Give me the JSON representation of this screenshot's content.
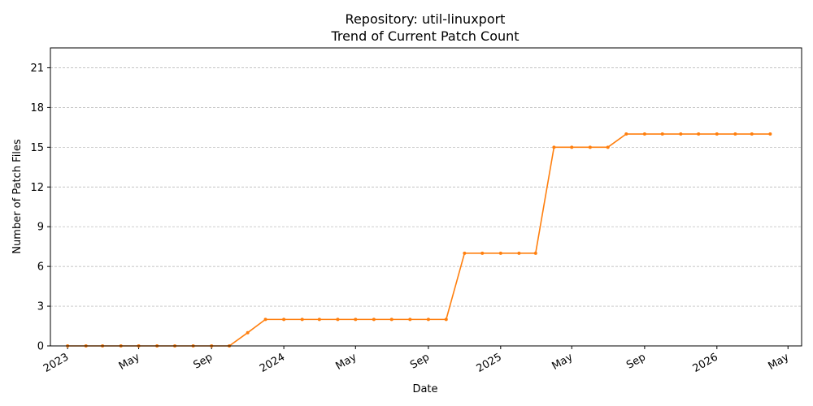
{
  "chart_data": {
    "type": "line",
    "title": "Repository: util-linuxport",
    "subtitle": "Trend of Current Patch Count",
    "xlabel": "Date",
    "ylabel": "Number of Patch Files",
    "ylim": [
      0,
      22.5
    ],
    "yticks": [
      0,
      3,
      6,
      9,
      12,
      15,
      18,
      21
    ],
    "grid": "horizontal dashed",
    "xlim": [
      "2022-12-03",
      "2026-05-24"
    ],
    "xticks": [
      {
        "date": "2023-01-01",
        "label": "2023"
      },
      {
        "date": "2023-05-01",
        "label": "May"
      },
      {
        "date": "2023-09-01",
        "label": "Sep"
      },
      {
        "date": "2024-01-01",
        "label": "2024"
      },
      {
        "date": "2024-05-01",
        "label": "May"
      },
      {
        "date": "2024-09-01",
        "label": "Sep"
      },
      {
        "date": "2025-01-01",
        "label": "2025"
      },
      {
        "date": "2025-05-01",
        "label": "May"
      },
      {
        "date": "2025-09-01",
        "label": "Sep"
      },
      {
        "date": "2026-01-01",
        "label": "2026"
      },
      {
        "date": "2026-05-01",
        "label": "May"
      }
    ],
    "series": [
      {
        "color": "#ff7f0e",
        "x": [
          "2023-01-01",
          "2023-02-01",
          "2023-03-01",
          "2023-04-01",
          "2023-05-01",
          "2023-06-01",
          "2023-07-01",
          "2023-08-01",
          "2023-09-01",
          "2023-10-01",
          "2023-11-01",
          "2023-12-01",
          "2024-01-01",
          "2024-02-01",
          "2024-03-01",
          "2024-04-01",
          "2024-05-01",
          "2024-06-01",
          "2024-07-01",
          "2024-08-01",
          "2024-09-01",
          "2024-10-01",
          "2024-11-01",
          "2024-12-01",
          "2025-01-01",
          "2025-02-01",
          "2025-03-01",
          "2025-04-01",
          "2025-05-01",
          "2025-06-01",
          "2025-07-01",
          "2025-08-01",
          "2025-09-01",
          "2025-10-01",
          "2025-11-01",
          "2025-12-01",
          "2026-01-01",
          "2026-02-01",
          "2026-03-01",
          "2026-04-01"
        ],
        "y": [
          0,
          0,
          0,
          0,
          0,
          0,
          0,
          0,
          0,
          0,
          1,
          2,
          2,
          2,
          2,
          2,
          2,
          2,
          2,
          2,
          2,
          2,
          7,
          7,
          7,
          7,
          7,
          15,
          15,
          15,
          15,
          16,
          16,
          16,
          16,
          16,
          16,
          16,
          16,
          16
        ]
      }
    ]
  }
}
